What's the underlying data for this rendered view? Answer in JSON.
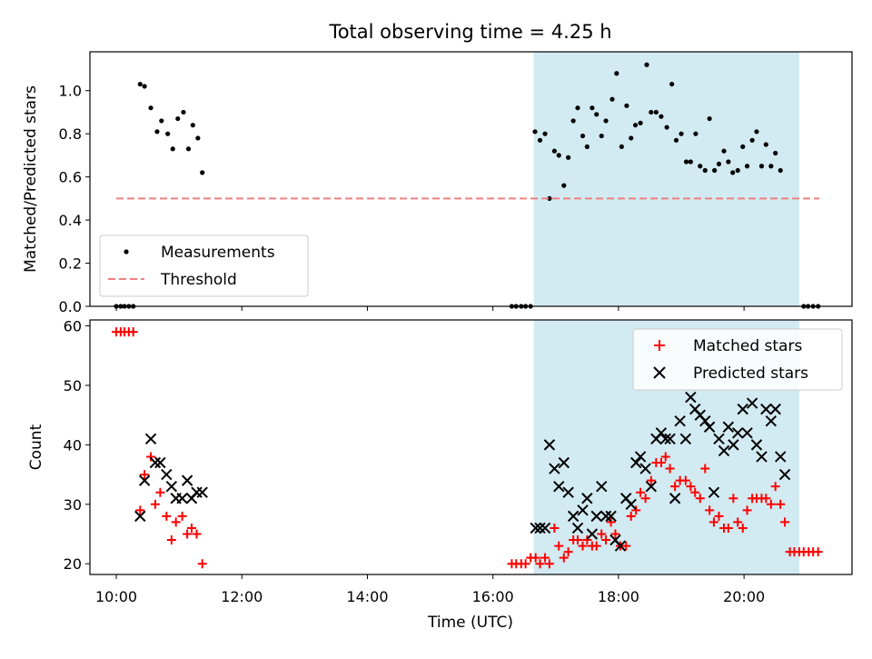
{
  "figure": {
    "title": "Total observing time = 4.25 h",
    "shaded_span": {
      "start_h": 16.65,
      "end_h": 20.88
    },
    "colors": {
      "shade": "#add8e6",
      "measurement": "#000000",
      "threshold": "#f08080",
      "matched": "#ff0000",
      "predicted": "#000000"
    }
  },
  "chart_data": [
    {
      "type": "scatter",
      "title": "Total observing time = 4.25 h",
      "xlabel": "",
      "ylabel": "Matched/Predicted stars",
      "xlim": [
        9.58,
        21.72
      ],
      "ylim": [
        0.0,
        1.18
      ],
      "yticks": [
        0.0,
        0.2,
        0.4,
        0.6,
        0.8,
        1.0
      ],
      "ytick_labels": [
        "0.0",
        "0.2",
        "0.4",
        "0.6",
        "0.8",
        "1.0"
      ],
      "xticks": [
        10,
        12,
        14,
        16,
        18,
        20
      ],
      "grid": false,
      "legend_position": "lower-left",
      "series": [
        {
          "name": "Measurements",
          "kind": "points",
          "points": [
            [
              10.0,
              0.0
            ],
            [
              10.07,
              0.0
            ],
            [
              10.13,
              0.0
            ],
            [
              10.2,
              0.0
            ],
            [
              10.27,
              0.0
            ],
            [
              10.38,
              1.03
            ],
            [
              10.45,
              1.02
            ],
            [
              10.55,
              0.92
            ],
            [
              10.65,
              0.81
            ],
            [
              10.72,
              0.86
            ],
            [
              10.82,
              0.8
            ],
            [
              10.9,
              0.73
            ],
            [
              10.98,
              0.87
            ],
            [
              11.07,
              0.9
            ],
            [
              11.15,
              0.73
            ],
            [
              11.22,
              0.84
            ],
            [
              11.3,
              0.78
            ],
            [
              11.37,
              0.62
            ],
            [
              16.3,
              0.0
            ],
            [
              16.37,
              0.0
            ],
            [
              16.45,
              0.0
            ],
            [
              16.52,
              0.0
            ],
            [
              16.6,
              0.0
            ],
            [
              16.67,
              0.81
            ],
            [
              16.75,
              0.77
            ],
            [
              16.83,
              0.8
            ],
            [
              16.9,
              0.5
            ],
            [
              16.98,
              0.72
            ],
            [
              17.05,
              0.7
            ],
            [
              17.13,
              0.56
            ],
            [
              17.2,
              0.69
            ],
            [
              17.28,
              0.86
            ],
            [
              17.35,
              0.92
            ],
            [
              17.43,
              0.79
            ],
            [
              17.5,
              0.74
            ],
            [
              17.58,
              0.92
            ],
            [
              17.65,
              0.89
            ],
            [
              17.73,
              0.79
            ],
            [
              17.8,
              0.86
            ],
            [
              17.9,
              0.96
            ],
            [
              17.97,
              1.08
            ],
            [
              18.05,
              0.74
            ],
            [
              18.13,
              0.93
            ],
            [
              18.2,
              0.78
            ],
            [
              18.27,
              0.84
            ],
            [
              18.35,
              0.85
            ],
            [
              18.45,
              1.12
            ],
            [
              18.52,
              0.9
            ],
            [
              18.6,
              0.9
            ],
            [
              18.68,
              0.88
            ],
            [
              18.77,
              0.83
            ],
            [
              18.85,
              1.03
            ],
            [
              18.92,
              0.77
            ],
            [
              19.0,
              0.8
            ],
            [
              19.08,
              0.67
            ],
            [
              19.15,
              0.67
            ],
            [
              19.23,
              0.8
            ],
            [
              19.3,
              0.65
            ],
            [
              19.38,
              0.63
            ],
            [
              19.45,
              0.87
            ],
            [
              19.53,
              0.63
            ],
            [
              19.6,
              0.66
            ],
            [
              19.68,
              0.72
            ],
            [
              19.75,
              0.67
            ],
            [
              19.82,
              0.62
            ],
            [
              19.9,
              0.63
            ],
            [
              19.98,
              0.74
            ],
            [
              20.05,
              0.65
            ],
            [
              20.13,
              0.77
            ],
            [
              20.2,
              0.81
            ],
            [
              20.28,
              0.65
            ],
            [
              20.35,
              0.75
            ],
            [
              20.43,
              0.65
            ],
            [
              20.5,
              0.71
            ],
            [
              20.58,
              0.63
            ],
            [
              20.95,
              0.0
            ],
            [
              21.02,
              0.0
            ],
            [
              21.1,
              0.0
            ],
            [
              21.18,
              0.0
            ]
          ]
        },
        {
          "name": "Threshold",
          "kind": "dashed-line",
          "x": [
            10.0,
            21.2
          ],
          "y": [
            0.5,
            0.5
          ]
        }
      ]
    },
    {
      "type": "scatter",
      "title": "",
      "xlabel": "Time (UTC)",
      "ylabel": "Count",
      "xlim": [
        9.58,
        21.72
      ],
      "ylim": [
        18.2,
        61.0
      ],
      "yticks": [
        20,
        30,
        40,
        50,
        60
      ],
      "ytick_labels": [
        "20",
        "30",
        "40",
        "50",
        "60"
      ],
      "xticks": [
        10,
        12,
        14,
        16,
        18,
        20
      ],
      "xtick_labels": [
        "10:00",
        "12:00",
        "14:00",
        "16:00",
        "18:00",
        "20:00"
      ],
      "grid": false,
      "legend_position": "upper-right",
      "series": [
        {
          "name": "Matched stars",
          "marker": "plus",
          "points": [
            [
              10.0,
              59
            ],
            [
              10.07,
              59
            ],
            [
              10.13,
              59
            ],
            [
              10.2,
              59
            ],
            [
              10.27,
              59
            ],
            [
              10.38,
              29
            ],
            [
              10.45,
              35
            ],
            [
              10.55,
              38
            ],
            [
              10.62,
              30
            ],
            [
              10.7,
              32
            ],
            [
              10.8,
              28
            ],
            [
              10.88,
              24
            ],
            [
              10.95,
              27
            ],
            [
              11.05,
              28
            ],
            [
              11.13,
              25
            ],
            [
              11.2,
              26
            ],
            [
              11.28,
              25
            ],
            [
              11.37,
              20
            ],
            [
              16.3,
              20
            ],
            [
              16.37,
              20
            ],
            [
              16.45,
              20
            ],
            [
              16.52,
              20
            ],
            [
              16.6,
              21
            ],
            [
              16.68,
              21
            ],
            [
              16.75,
              20
            ],
            [
              16.83,
              21
            ],
            [
              16.9,
              20
            ],
            [
              16.98,
              26
            ],
            [
              17.05,
              23
            ],
            [
              17.13,
              21
            ],
            [
              17.2,
              22
            ],
            [
              17.28,
              24
            ],
            [
              17.35,
              24
            ],
            [
              17.43,
              23
            ],
            [
              17.5,
              24
            ],
            [
              17.58,
              23
            ],
            [
              17.65,
              23
            ],
            [
              17.73,
              25
            ],
            [
              17.8,
              24
            ],
            [
              17.88,
              27
            ],
            [
              17.95,
              25
            ],
            [
              18.03,
              23
            ],
            [
              18.12,
              23
            ],
            [
              18.2,
              28
            ],
            [
              18.28,
              29
            ],
            [
              18.35,
              32
            ],
            [
              18.43,
              31
            ],
            [
              18.52,
              34
            ],
            [
              18.6,
              37
            ],
            [
              18.68,
              37
            ],
            [
              18.75,
              38
            ],
            [
              18.82,
              36
            ],
            [
              18.9,
              33
            ],
            [
              18.98,
              34
            ],
            [
              19.07,
              34
            ],
            [
              19.15,
              33
            ],
            [
              19.22,
              32
            ],
            [
              19.3,
              31
            ],
            [
              19.38,
              36
            ],
            [
              19.45,
              29
            ],
            [
              19.52,
              27
            ],
            [
              19.6,
              28
            ],
            [
              19.68,
              26
            ],
            [
              19.75,
              26
            ],
            [
              19.83,
              31
            ],
            [
              19.9,
              27
            ],
            [
              19.98,
              26
            ],
            [
              20.05,
              29
            ],
            [
              20.13,
              31
            ],
            [
              20.2,
              31
            ],
            [
              20.28,
              31
            ],
            [
              20.35,
              31
            ],
            [
              20.43,
              30
            ],
            [
              20.5,
              33
            ],
            [
              20.58,
              30
            ],
            [
              20.65,
              27
            ],
            [
              20.73,
              22
            ],
            [
              20.8,
              22
            ],
            [
              20.88,
              22
            ],
            [
              20.95,
              22
            ],
            [
              21.03,
              22
            ],
            [
              21.1,
              22
            ],
            [
              21.18,
              22
            ]
          ]
        },
        {
          "name": "Predicted stars",
          "marker": "x",
          "points": [
            [
              10.38,
              28
            ],
            [
              10.45,
              34
            ],
            [
              10.55,
              41
            ],
            [
              10.62,
              37
            ],
            [
              10.7,
              37
            ],
            [
              10.8,
              35
            ],
            [
              10.88,
              33
            ],
            [
              10.95,
              31
            ],
            [
              11.05,
              31
            ],
            [
              11.13,
              34
            ],
            [
              11.2,
              31
            ],
            [
              11.28,
              32
            ],
            [
              11.37,
              32
            ],
            [
              16.68,
              26
            ],
            [
              16.75,
              26
            ],
            [
              16.83,
              26
            ],
            [
              16.9,
              40
            ],
            [
              16.98,
              36
            ],
            [
              17.05,
              33
            ],
            [
              17.13,
              37
            ],
            [
              17.2,
              32
            ],
            [
              17.28,
              28
            ],
            [
              17.35,
              26
            ],
            [
              17.43,
              29
            ],
            [
              17.5,
              31
            ],
            [
              17.58,
              25
            ],
            [
              17.65,
              28
            ],
            [
              17.73,
              33
            ],
            [
              17.8,
              28
            ],
            [
              17.88,
              28
            ],
            [
              17.95,
              24
            ],
            [
              18.03,
              23
            ],
            [
              18.12,
              31
            ],
            [
              18.2,
              30
            ],
            [
              18.28,
              37
            ],
            [
              18.35,
              38
            ],
            [
              18.43,
              36
            ],
            [
              18.52,
              33
            ],
            [
              18.6,
              41
            ],
            [
              18.68,
              42
            ],
            [
              18.75,
              41
            ],
            [
              18.82,
              41
            ],
            [
              18.9,
              31
            ],
            [
              18.98,
              44
            ],
            [
              19.07,
              41
            ],
            [
              19.15,
              48
            ],
            [
              19.22,
              46
            ],
            [
              19.3,
              45
            ],
            [
              19.38,
              44
            ],
            [
              19.45,
              43
            ],
            [
              19.52,
              32
            ],
            [
              19.6,
              41
            ],
            [
              19.68,
              39
            ],
            [
              19.75,
              43
            ],
            [
              19.83,
              40
            ],
            [
              19.9,
              42
            ],
            [
              19.98,
              46
            ],
            [
              20.05,
              42
            ],
            [
              20.13,
              47
            ],
            [
              20.2,
              40
            ],
            [
              20.28,
              38
            ],
            [
              20.35,
              46
            ],
            [
              20.43,
              44
            ],
            [
              20.5,
              46
            ],
            [
              20.58,
              38
            ],
            [
              20.65,
              35
            ]
          ]
        }
      ]
    }
  ]
}
